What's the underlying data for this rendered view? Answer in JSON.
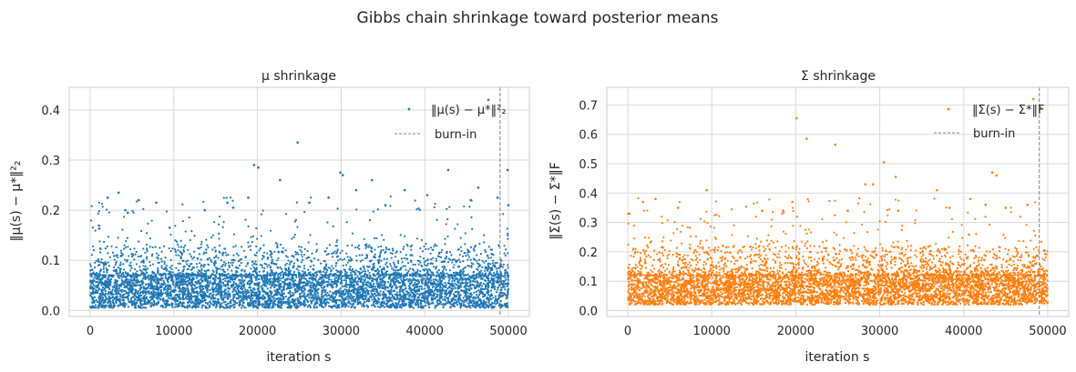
{
  "figure": {
    "suptitle": "Gibbs chain shrinkage toward posterior means"
  },
  "chart_data": [
    {
      "type": "scatter",
      "title": "μ shrinkage",
      "xlabel": "iteration  s",
      "ylabel": "‖μ(s) − μ*‖²₂",
      "xlim": [
        -2500,
        52500
      ],
      "ylim": [
        -0.012,
        0.445
      ],
      "xticks": [
        0,
        10000,
        20000,
        30000,
        40000,
        50000
      ],
      "xtick_labels": [
        "0",
        "10000",
        "20000",
        "30000",
        "40000",
        "50000"
      ],
      "yticks": [
        0.0,
        0.1,
        0.2,
        0.3,
        0.4
      ],
      "ytick_labels": [
        "0.0",
        "0.1",
        "0.2",
        "0.3",
        "0.4"
      ],
      "grid": true,
      "legend_position": "top-right",
      "color": "#1f77b4",
      "series": [
        {
          "name": "‖μ(s) − μ*‖²₂",
          "kind": "points",
          "summary": {
            "n_iterations": 50000,
            "dense_band": [
              0.005,
              0.07
            ],
            "bulk_upper": 0.13
          }
        },
        {
          "name": "burn-in",
          "kind": "vline",
          "x": 49000,
          "color": "#808080",
          "style": "dashed"
        }
      ],
      "outliers": [
        {
          "x": 2100,
          "y": 0.225
        },
        {
          "x": 3400,
          "y": 0.235
        },
        {
          "x": 4200,
          "y": 0.2
        },
        {
          "x": 4500,
          "y": 0.195
        },
        {
          "x": 5800,
          "y": 0.22
        },
        {
          "x": 7900,
          "y": 0.215
        },
        {
          "x": 9500,
          "y": 0.165
        },
        {
          "x": 13700,
          "y": 0.2
        },
        {
          "x": 16400,
          "y": 0.215
        },
        {
          "x": 17100,
          "y": 0.205
        },
        {
          "x": 18900,
          "y": 0.225
        },
        {
          "x": 19600,
          "y": 0.29
        },
        {
          "x": 20100,
          "y": 0.285
        },
        {
          "x": 22700,
          "y": 0.26
        },
        {
          "x": 24800,
          "y": 0.335
        },
        {
          "x": 26200,
          "y": 0.215
        },
        {
          "x": 28500,
          "y": 0.225
        },
        {
          "x": 29900,
          "y": 0.275
        },
        {
          "x": 30200,
          "y": 0.27
        },
        {
          "x": 31800,
          "y": 0.24
        },
        {
          "x": 33700,
          "y": 0.26
        },
        {
          "x": 35300,
          "y": 0.21
        },
        {
          "x": 37600,
          "y": 0.24
        },
        {
          "x": 40300,
          "y": 0.23
        },
        {
          "x": 42800,
          "y": 0.28
        },
        {
          "x": 45500,
          "y": 0.22
        },
        {
          "x": 46400,
          "y": 0.245
        },
        {
          "x": 47600,
          "y": 0.42
        },
        {
          "x": 48700,
          "y": 0.225
        },
        {
          "x": 49900,
          "y": 0.28
        },
        {
          "x": 50000,
          "y": 0.21
        }
      ]
    },
    {
      "type": "scatter",
      "title": "Σ shrinkage",
      "xlabel": "iteration  s",
      "ylabel": "‖Σ(s) − Σ*‖F",
      "xlim": [
        -2500,
        52500
      ],
      "ylim": [
        -0.02,
        0.76
      ],
      "xticks": [
        0,
        10000,
        20000,
        30000,
        40000,
        50000
      ],
      "xtick_labels": [
        "0",
        "10000",
        "20000",
        "30000",
        "40000",
        "50000"
      ],
      "yticks": [
        0.0,
        0.1,
        0.2,
        0.3,
        0.4,
        0.5,
        0.6,
        0.7
      ],
      "ytick_labels": [
        "0.0",
        "0.1",
        "0.2",
        "0.3",
        "0.4",
        "0.5",
        "0.6",
        "0.7"
      ],
      "grid": true,
      "legend_position": "top-right",
      "color": "#ff7f0e",
      "series": [
        {
          "name": "‖Σ(s) − Σ*‖F",
          "kind": "points",
          "summary": {
            "n_iterations": 50000,
            "dense_band": [
              0.02,
              0.12
            ],
            "bulk_upper": 0.22
          }
        },
        {
          "name": "burn-in",
          "kind": "vline",
          "x": 49000,
          "color": "#808080",
          "style": "dashed"
        }
      ],
      "outliers": [
        {
          "x": 200,
          "y": 0.33
        },
        {
          "x": 1800,
          "y": 0.37
        },
        {
          "x": 3300,
          "y": 0.38
        },
        {
          "x": 6000,
          "y": 0.35
        },
        {
          "x": 9400,
          "y": 0.41
        },
        {
          "x": 16000,
          "y": 0.34
        },
        {
          "x": 18500,
          "y": 0.34
        },
        {
          "x": 19600,
          "y": 0.37
        },
        {
          "x": 20100,
          "y": 0.655
        },
        {
          "x": 21300,
          "y": 0.585
        },
        {
          "x": 24700,
          "y": 0.565
        },
        {
          "x": 26200,
          "y": 0.34
        },
        {
          "x": 28300,
          "y": 0.43
        },
        {
          "x": 29200,
          "y": 0.43
        },
        {
          "x": 30500,
          "y": 0.505
        },
        {
          "x": 31900,
          "y": 0.455
        },
        {
          "x": 32200,
          "y": 0.34
        },
        {
          "x": 36800,
          "y": 0.41
        },
        {
          "x": 38300,
          "y": 0.35
        },
        {
          "x": 40800,
          "y": 0.38
        },
        {
          "x": 42600,
          "y": 0.36
        },
        {
          "x": 43400,
          "y": 0.47
        },
        {
          "x": 43900,
          "y": 0.46
        },
        {
          "x": 45000,
          "y": 0.35
        },
        {
          "x": 48300,
          "y": 0.72
        },
        {
          "x": 49200,
          "y": 0.69
        },
        {
          "x": 47600,
          "y": 0.36
        }
      ]
    }
  ]
}
